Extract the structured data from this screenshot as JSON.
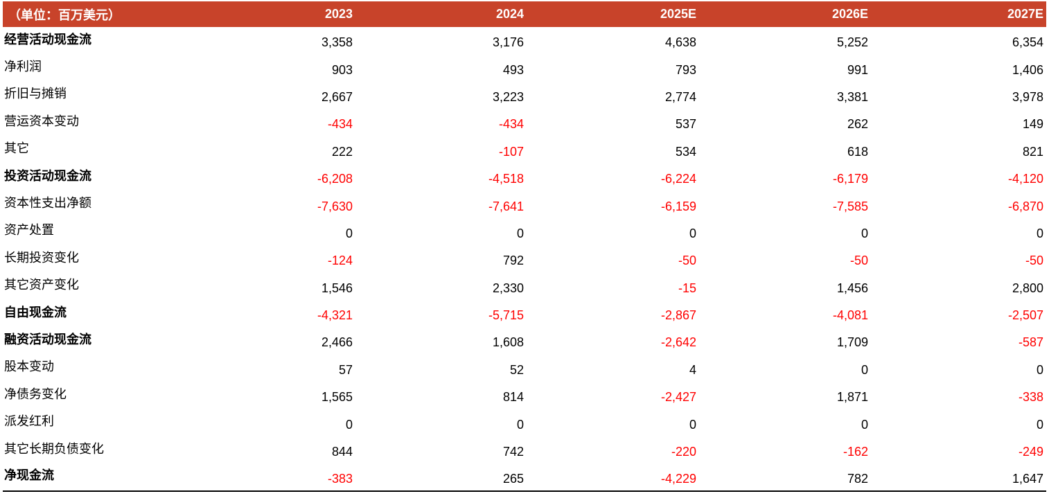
{
  "table": {
    "unit_label": "（单位：百万美元）",
    "years": [
      "2023",
      "2024",
      "2025E",
      "2026E",
      "2027E"
    ],
    "rows": [
      {
        "label": "经营活动现金流",
        "bold": true,
        "values": [
          "3,358",
          "3,176",
          "4,638",
          "5,252",
          "6,354"
        ]
      },
      {
        "label": "净利润",
        "bold": false,
        "values": [
          "903",
          "493",
          "793",
          "991",
          "1,406"
        ]
      },
      {
        "label": "折旧与摊销",
        "bold": false,
        "values": [
          "2,667",
          "3,223",
          "2,774",
          "3,381",
          "3,978"
        ]
      },
      {
        "label": "营运资本变动",
        "bold": false,
        "values": [
          "-434",
          "-434",
          "537",
          "262",
          "149"
        ]
      },
      {
        "label": "其它",
        "bold": false,
        "values": [
          "222",
          "-107",
          "534",
          "618",
          "821"
        ]
      },
      {
        "label": "投资活动现金流",
        "bold": true,
        "values": [
          "-6,208",
          "-4,518",
          "-6,224",
          "-6,179",
          "-4,120"
        ]
      },
      {
        "label": "资本性支出净额",
        "bold": false,
        "values": [
          "-7,630",
          "-7,641",
          "-6,159",
          "-7,585",
          "-6,870"
        ]
      },
      {
        "label": "资产处置",
        "bold": false,
        "values": [
          "0",
          "0",
          "0",
          "0",
          "0"
        ]
      },
      {
        "label": "长期投资变化",
        "bold": false,
        "values": [
          "-124",
          "792",
          "-50",
          "-50",
          "-50"
        ]
      },
      {
        "label": "其它资产变化",
        "bold": false,
        "values": [
          "1,546",
          "2,330",
          "-15",
          "1,456",
          "2,800"
        ]
      },
      {
        "label": "自由现金流",
        "bold": true,
        "values": [
          "-4,321",
          "-5,715",
          "-2,867",
          "-4,081",
          "-2,507"
        ]
      },
      {
        "label": "融资活动现金流",
        "bold": true,
        "values": [
          "2,466",
          "1,608",
          "-2,642",
          "1,709",
          "-587"
        ]
      },
      {
        "label": "股本变动",
        "bold": false,
        "values": [
          "57",
          "52",
          "4",
          "0",
          "0"
        ]
      },
      {
        "label": "净债务变化",
        "bold": false,
        "values": [
          "1,565",
          "814",
          "-2,427",
          "1,871",
          "-338"
        ]
      },
      {
        "label": "派发红利",
        "bold": false,
        "values": [
          "0",
          "0",
          "0",
          "0",
          "0"
        ]
      },
      {
        "label": "其它长期负债变化",
        "bold": false,
        "values": [
          "844",
          "742",
          "-220",
          "-162",
          "-249"
        ]
      },
      {
        "label": "净现金流",
        "bold": true,
        "values": [
          "-383",
          "265",
          "-4,229",
          "782",
          "1,647"
        ]
      }
    ]
  },
  "colors": {
    "header_bg": "#c8432a",
    "header_text": "#ffffff",
    "negative": "#ff0000",
    "positive": "#000000"
  }
}
